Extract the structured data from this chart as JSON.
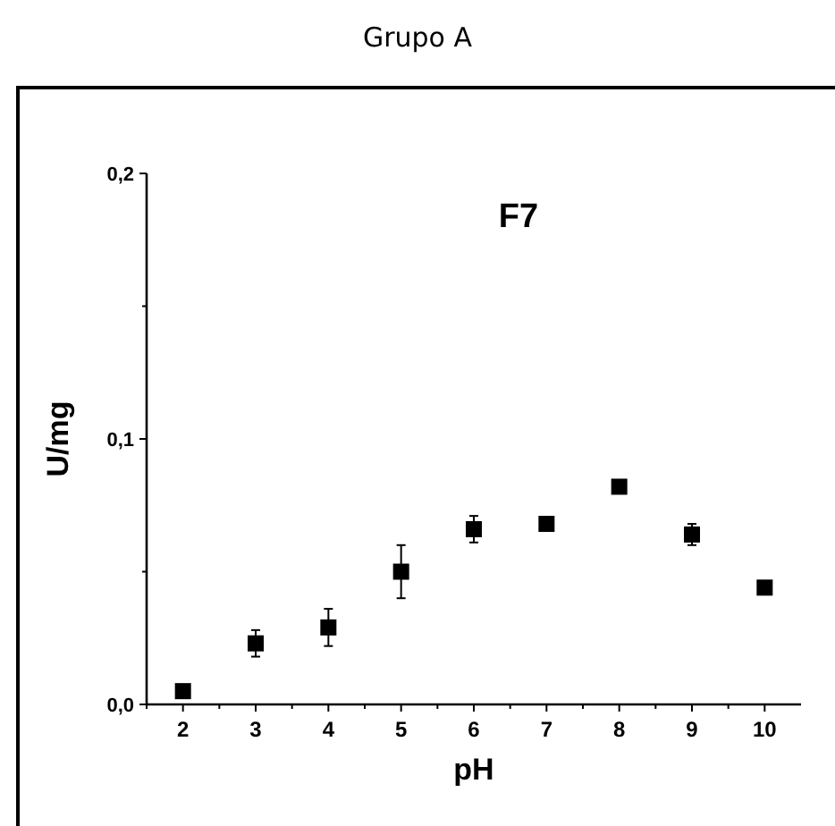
{
  "chart_data": {
    "type": "scatter",
    "title": "Grupo A",
    "annotations": [
      "F7"
    ],
    "xlabel": "pH",
    "ylabel": "U/mg",
    "x": [
      2,
      3,
      4,
      5,
      6,
      7,
      8,
      9,
      10
    ],
    "values": [
      0.005,
      0.023,
      0.029,
      0.05,
      0.066,
      0.068,
      0.082,
      0.064,
      0.044
    ],
    "errors": [
      null,
      0.005,
      0.007,
      0.01,
      0.005,
      0.001,
      null,
      0.004,
      0.001
    ],
    "color": "#000000",
    "marker": "square",
    "grid": false,
    "xlim": [
      1.5,
      10.5
    ],
    "xticks": [
      {
        "value": 1.5,
        "label": null
      },
      2,
      {
        "value": 2.5,
        "label": null
      },
      3,
      {
        "value": 3.5,
        "label": null
      },
      4,
      {
        "value": 4.5,
        "label": null
      },
      5,
      {
        "value": 5.5,
        "label": null
      },
      6,
      {
        "value": 6.5,
        "label": null
      },
      7,
      {
        "value": 7.5,
        "label": null
      },
      8,
      {
        "value": 8.5,
        "label": null
      },
      9,
      {
        "value": 9.5,
        "label": null
      },
      10
    ],
    "ylim": [
      0,
      0.2
    ],
    "yticks": [
      {
        "value": 0,
        "label": "0,0"
      },
      {
        "value": 0.05,
        "label": null
      },
      {
        "value": 0.1,
        "label": "0,1"
      },
      {
        "value": 0.15,
        "label": null
      },
      {
        "value": 0.2,
        "label": "0,2"
      }
    ]
  }
}
